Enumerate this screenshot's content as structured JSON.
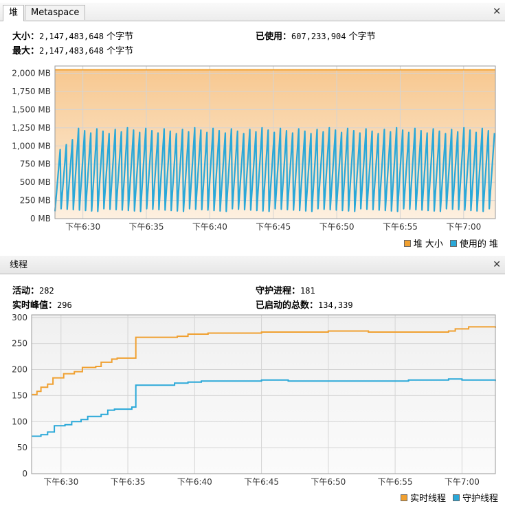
{
  "heap_panel": {
    "tabs": [
      {
        "label": "堆"
      },
      {
        "label": "Metaspace"
      }
    ],
    "size_label": "大小：",
    "size_value": "2,147,483,648",
    "size_unit": "个字节",
    "max_label": "最大：",
    "max_value": "2,147,483,648",
    "max_unit": "个字节",
    "used_label": "已使用：",
    "used_value": "607,233,904",
    "used_unit": "个字节",
    "legend": [
      {
        "label": "堆 大小",
        "color": "#f0a030"
      },
      {
        "label": "使用的 堆",
        "color": "#2aa8d8"
      }
    ]
  },
  "threads_panel": {
    "title": "线程",
    "live_label": "活动：",
    "live_value": "282",
    "peak_label": "实时峰值：",
    "peak_value": "296",
    "daemon_label": "守护进程：",
    "daemon_value": "181",
    "started_label": "已启动的总数：",
    "started_value": "134,339",
    "legend": [
      {
        "label": "实时线程",
        "color": "#f0a030"
      },
      {
        "label": "守护线程",
        "color": "#2aa8d8"
      }
    ]
  },
  "chart_data": [
    {
      "type": "area",
      "y_ticks": [
        "0 MB",
        "250 MB",
        "500 MB",
        "750 MB",
        "1,000 MB",
        "1,250 MB",
        "1,500 MB",
        "1,750 MB",
        "2,000 MB"
      ],
      "x_ticks": [
        "下午6:30",
        "下午6:35",
        "下午6:40",
        "下午6:45",
        "下午6:50",
        "下午6:55",
        "下午7:00"
      ],
      "ylim": [
        0,
        2100
      ],
      "xlim_minutes": [
        -2.2,
        32.5
      ],
      "grid": true,
      "series": [
        {
          "name": "堆 大小",
          "color": "#f0a030",
          "constant": 2048
        },
        {
          "name": "使用的 堆",
          "color": "#2aa8d8",
          "sawtooth": {
            "min": 100,
            "max": 1250,
            "cycles": 72
          }
        }
      ]
    },
    {
      "type": "line",
      "y_ticks": [
        "0",
        "50",
        "100",
        "150",
        "200",
        "250",
        "300"
      ],
      "x_ticks": [
        "下午6:30",
        "下午6:35",
        "下午6:40",
        "下午6:45",
        "下午6:50",
        "下午6:55",
        "下午7:00"
      ],
      "ylim": [
        0,
        305
      ],
      "xlim_minutes": [
        -2.2,
        32.5
      ],
      "grid": true,
      "series": [
        {
          "name": "实时线程",
          "color": "#f0a030",
          "points": [
            [
              -2.2,
              152
            ],
            [
              -1.8,
              158
            ],
            [
              -1.5,
              166
            ],
            [
              -1.0,
              172
            ],
            [
              -0.6,
              184
            ],
            [
              0.2,
              192
            ],
            [
              1.0,
              196
            ],
            [
              1.6,
              204
            ],
            [
              2.6,
              206
            ],
            [
              3.0,
              214
            ],
            [
              3.8,
              220
            ],
            [
              4.2,
              222
            ],
            [
              5.3,
              222
            ],
            [
              5.6,
              262
            ],
            [
              7.0,
              262
            ],
            [
              8.0,
              262
            ],
            [
              8.7,
              264
            ],
            [
              9.5,
              268
            ],
            [
              11.0,
              270
            ],
            [
              12.0,
              270
            ],
            [
              15.0,
              272
            ],
            [
              20.0,
              274
            ],
            [
              23.0,
              272
            ],
            [
              26.0,
              272
            ],
            [
              29.0,
              274
            ],
            [
              29.5,
              278
            ],
            [
              30.5,
              282
            ],
            [
              32.5,
              280
            ]
          ]
        },
        {
          "name": "守护线程",
          "color": "#2aa8d8",
          "points": [
            [
              -2.2,
              72
            ],
            [
              -1.5,
              75
            ],
            [
              -1.0,
              80
            ],
            [
              -0.5,
              92
            ],
            [
              0.3,
              94
            ],
            [
              0.8,
              100
            ],
            [
              1.5,
              104
            ],
            [
              2.0,
              110
            ],
            [
              3.0,
              114
            ],
            [
              3.5,
              122
            ],
            [
              4.0,
              124
            ],
            [
              5.3,
              128
            ],
            [
              5.6,
              170
            ],
            [
              8.0,
              170
            ],
            [
              8.5,
              174
            ],
            [
              9.5,
              176
            ],
            [
              10.5,
              178
            ],
            [
              12.0,
              178
            ],
            [
              15.0,
              180
            ],
            [
              17.0,
              178
            ],
            [
              22.0,
              178
            ],
            [
              26.0,
              180
            ],
            [
              29.0,
              182
            ],
            [
              30.0,
              180
            ],
            [
              32.5,
              178
            ]
          ]
        }
      ]
    }
  ]
}
